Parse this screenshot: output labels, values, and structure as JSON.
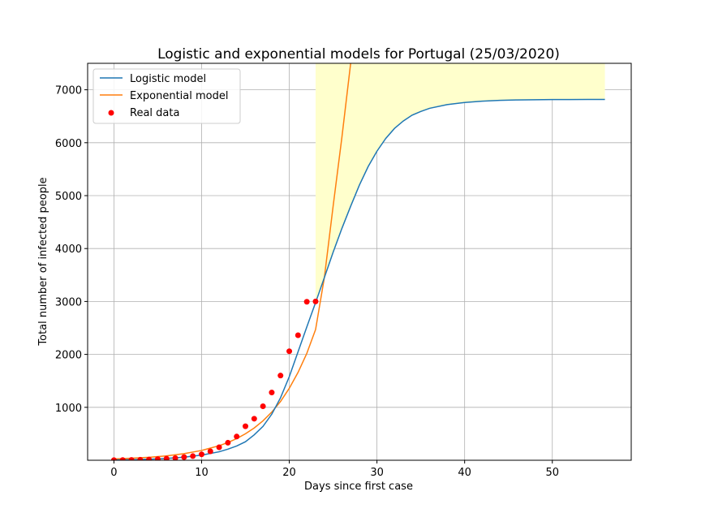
{
  "chart_data": {
    "type": "line",
    "title": "Logistic and exponential models for Portugal (25/03/2020)",
    "xlabel": "Days since first case",
    "ylabel": "Total number of infected people",
    "xlim": [
      -3,
      59
    ],
    "ylim": [
      0,
      7500
    ],
    "xticks": [
      0,
      10,
      20,
      30,
      40,
      50
    ],
    "yticks": [
      1000,
      2000,
      3000,
      4000,
      5000,
      6000,
      7000
    ],
    "grid": true,
    "legend_position": "upper-left",
    "colors": {
      "logistic": "#1f77b4",
      "exponential": "#ff7f0e",
      "real": "#ff0000",
      "band": "#ffffcc"
    },
    "logistic_model": {
      "name": "Logistic model",
      "x": [
        0,
        2,
        4,
        6,
        8,
        10,
        12,
        13,
        14,
        15,
        16,
        17,
        18,
        19,
        20,
        21,
        22,
        23,
        24,
        25,
        26,
        27,
        28,
        29,
        30,
        31,
        32,
        33,
        34,
        35,
        36,
        38,
        40,
        42,
        44,
        46,
        48,
        50,
        52,
        54,
        56
      ],
      "y": [
        5,
        10,
        20,
        35,
        58,
        97,
        160,
        210,
        270,
        350,
        480,
        640,
        870,
        1180,
        1580,
        2050,
        2520,
        2980,
        3450,
        3930,
        4380,
        4800,
        5200,
        5550,
        5840,
        6080,
        6270,
        6410,
        6520,
        6590,
        6650,
        6720,
        6760,
        6785,
        6800,
        6808,
        6812,
        6815,
        6816,
        6817,
        6817
      ]
    },
    "exponential_model": {
      "name": "Exponential model",
      "x": [
        0,
        2,
        4,
        6,
        8,
        10,
        12,
        13,
        14,
        15,
        16,
        17,
        18,
        19,
        20,
        21,
        22,
        23,
        24,
        25,
        26,
        27,
        27.3
      ],
      "y": [
        25,
        38,
        56,
        83,
        125,
        185,
        275,
        335,
        410,
        500,
        610,
        745,
        910,
        1110,
        1360,
        1660,
        2020,
        2470,
        3450,
        4800,
        6100,
        7500,
        7700
      ]
    },
    "real_data": {
      "name": "Real data",
      "x": [
        0,
        1,
        2,
        3,
        4,
        5,
        6,
        7,
        8,
        9,
        10,
        11,
        12,
        13,
        14,
        15,
        16,
        17,
        18,
        19,
        20,
        21,
        22,
        23
      ],
      "y": [
        2,
        4,
        6,
        9,
        13,
        21,
        30,
        41,
        59,
        78,
        112,
        169,
        245,
        331,
        448,
        642,
        785,
        1020,
        1280,
        1600,
        2060,
        2362,
        2995,
        3000
      ]
    }
  }
}
